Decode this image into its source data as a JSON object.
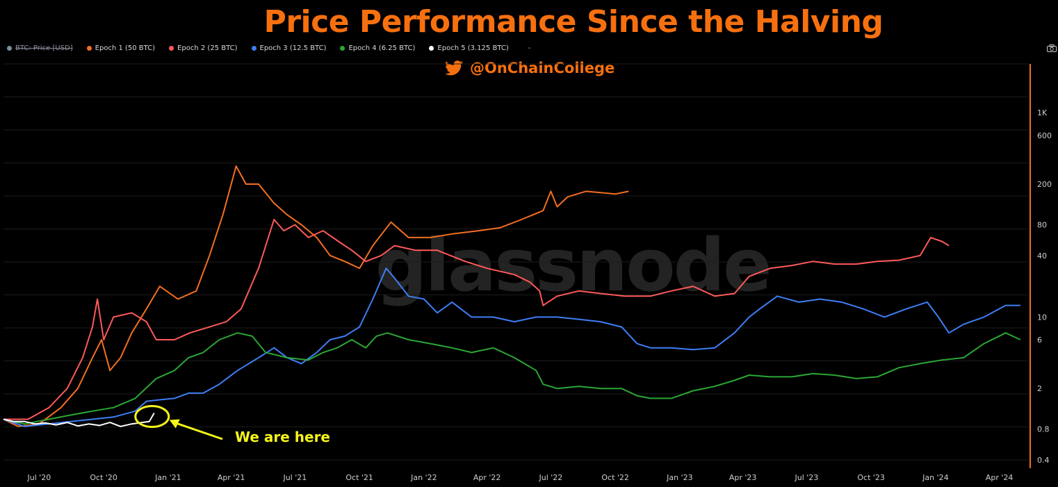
{
  "chart_data": {
    "type": "line",
    "title": "Price Performance Since the Halving",
    "credit": "@OnChainCollege",
    "watermark": "glassnode",
    "annotation": "We are here",
    "y_scale": "log",
    "ylim": [
      0.4,
      3000
    ],
    "y_ticks": [
      0.4,
      0.8,
      2,
      6,
      10,
      40,
      80,
      200,
      600,
      1000
    ],
    "y_tick_labels": [
      "0.4",
      "0.8",
      "2",
      "6",
      "10",
      "40",
      "80",
      "200",
      "600",
      "1K"
    ],
    "x_ticks": [
      "Jul '20",
      "Oct '20",
      "Jan '21",
      "Apr '21",
      "Jul '21",
      "Oct '21",
      "Jan '22",
      "Apr '22",
      "Jul '22",
      "Oct '22",
      "Jan '23",
      "Apr '23",
      "Jul '23",
      "Oct '23",
      "Jan '24",
      "Apr '24"
    ],
    "x_tick_dates": [
      "2020-07-01",
      "2020-10-01",
      "2021-01-01",
      "2021-04-01",
      "2021-07-01",
      "2021-10-01",
      "2022-01-01",
      "2022-04-01",
      "2022-07-01",
      "2022-10-01",
      "2023-01-01",
      "2023-04-01",
      "2023-07-01",
      "2023-10-01",
      "2024-01-01",
      "2024-04-01"
    ],
    "xlim": [
      "2020-05-11",
      "2024-05-13"
    ],
    "grid": true,
    "legend_position": "top-left",
    "legend_trailing": "-",
    "series": [
      {
        "name": "BTC: Price [USD]",
        "color": "#78909c",
        "visible": false,
        "points": []
      },
      {
        "name": "Epoch 1 (50 BTC)",
        "color": "#f36f21",
        "visible": true,
        "points": [
          [
            "2020-05-11",
            1.0
          ],
          [
            "2020-06-01",
            0.85
          ],
          [
            "2020-07-01",
            0.9
          ],
          [
            "2020-08-01",
            1.3
          ],
          [
            "2020-08-25",
            2.0
          ],
          [
            "2020-09-15",
            4.0
          ],
          [
            "2020-09-28",
            6.0
          ],
          [
            "2020-10-10",
            3.0
          ],
          [
            "2020-10-25",
            4.0
          ],
          [
            "2020-11-10",
            7.0
          ],
          [
            "2020-12-01",
            12.0
          ],
          [
            "2020-12-20",
            20.0
          ],
          [
            "2021-01-15",
            15.0
          ],
          [
            "2021-02-10",
            18.0
          ],
          [
            "2021-03-01",
            40.0
          ],
          [
            "2021-03-20",
            100.0
          ],
          [
            "2021-04-08",
            300.0
          ],
          [
            "2021-04-22",
            200.0
          ],
          [
            "2021-05-10",
            200.0
          ],
          [
            "2021-06-01",
            130.0
          ],
          [
            "2021-06-20",
            100.0
          ],
          [
            "2021-07-10",
            80.0
          ],
          [
            "2021-08-01",
            60.0
          ],
          [
            "2021-08-20",
            40.0
          ],
          [
            "2021-09-10",
            35.0
          ],
          [
            "2021-10-01",
            30.0
          ],
          [
            "2021-10-20",
            50.0
          ],
          [
            "2021-11-15",
            85.0
          ],
          [
            "2021-12-10",
            60.0
          ],
          [
            "2022-01-10",
            60.0
          ],
          [
            "2022-02-10",
            65.0
          ],
          [
            "2022-03-20",
            70.0
          ],
          [
            "2022-04-20",
            75.0
          ],
          [
            "2022-05-20",
            90.0
          ],
          [
            "2022-06-20",
            110.0
          ],
          [
            "2022-07-01",
            170.0
          ],
          [
            "2022-07-10",
            120.0
          ],
          [
            "2022-07-25",
            150.0
          ],
          [
            "2022-08-20",
            170.0
          ],
          [
            "2022-09-10",
            165.0
          ],
          [
            "2022-10-01",
            160.0
          ],
          [
            "2022-10-20",
            170.0
          ]
        ]
      },
      {
        "name": "Epoch 2 (25 BTC)",
        "color": "#ff5a5a",
        "visible": true,
        "points": [
          [
            "2020-05-11",
            1.0
          ],
          [
            "2020-06-15",
            1.0
          ],
          [
            "2020-07-15",
            1.3
          ],
          [
            "2020-08-10",
            2.0
          ],
          [
            "2020-09-01",
            4.0
          ],
          [
            "2020-09-15",
            8.0
          ],
          [
            "2020-09-22",
            15.0
          ],
          [
            "2020-10-01",
            6.0
          ],
          [
            "2020-10-15",
            10.0
          ],
          [
            "2020-11-10",
            11.0
          ],
          [
            "2020-12-01",
            9.0
          ],
          [
            "2020-12-15",
            6.0
          ],
          [
            "2021-01-10",
            6.0
          ],
          [
            "2021-02-01",
            7.0
          ],
          [
            "2021-03-01",
            8.0
          ],
          [
            "2021-03-25",
            9.0
          ],
          [
            "2021-04-15",
            12.0
          ],
          [
            "2021-05-10",
            30.0
          ],
          [
            "2021-06-01",
            90.0
          ],
          [
            "2021-06-15",
            70.0
          ],
          [
            "2021-07-01",
            80.0
          ],
          [
            "2021-07-20",
            60.0
          ],
          [
            "2021-08-10",
            70.0
          ],
          [
            "2021-09-01",
            55.0
          ],
          [
            "2021-09-20",
            45.0
          ],
          [
            "2021-10-10",
            35.0
          ],
          [
            "2021-11-01",
            40.0
          ],
          [
            "2021-11-20",
            50.0
          ],
          [
            "2021-12-20",
            45.0
          ],
          [
            "2022-01-20",
            45.0
          ],
          [
            "2022-03-01",
            35.0
          ],
          [
            "2022-04-01",
            30.0
          ],
          [
            "2022-05-10",
            26.0
          ],
          [
            "2022-06-01",
            22.0
          ],
          [
            "2022-06-15",
            18.0
          ],
          [
            "2022-06-20",
            13.0
          ],
          [
            "2022-07-10",
            16.0
          ],
          [
            "2022-08-10",
            18.0
          ],
          [
            "2022-09-10",
            17.0
          ],
          [
            "2022-10-15",
            16.0
          ],
          [
            "2022-11-20",
            16.0
          ],
          [
            "2022-12-20",
            18.0
          ],
          [
            "2023-01-20",
            20.0
          ],
          [
            "2023-02-20",
            16.0
          ],
          [
            "2023-03-20",
            17.0
          ],
          [
            "2023-04-10",
            25.0
          ],
          [
            "2023-05-10",
            30.0
          ],
          [
            "2023-06-10",
            32.0
          ],
          [
            "2023-07-10",
            35.0
          ],
          [
            "2023-08-10",
            33.0
          ],
          [
            "2023-09-10",
            33.0
          ],
          [
            "2023-10-10",
            35.0
          ],
          [
            "2023-11-10",
            36.0
          ],
          [
            "2023-12-10",
            40.0
          ],
          [
            "2023-12-25",
            60.0
          ],
          [
            "2024-01-10",
            55.0
          ],
          [
            "2024-01-20",
            50.0
          ]
        ]
      },
      {
        "name": "Epoch 3 (12.5 BTC)",
        "color": "#3e7ef5",
        "visible": true,
        "points": [
          [
            "2020-05-11",
            1.0
          ],
          [
            "2020-06-10",
            0.85
          ],
          [
            "2020-07-15",
            0.9
          ],
          [
            "2020-08-15",
            0.95
          ],
          [
            "2020-09-15",
            1.0
          ],
          [
            "2020-10-15",
            1.05
          ],
          [
            "2020-11-15",
            1.2
          ],
          [
            "2020-12-01",
            1.5
          ],
          [
            "2020-12-20",
            1.55
          ],
          [
            "2021-01-10",
            1.6
          ],
          [
            "2021-01-30",
            1.8
          ],
          [
            "2021-02-20",
            1.8
          ],
          [
            "2021-03-15",
            2.2
          ],
          [
            "2021-04-10",
            3.0
          ],
          [
            "2021-05-10",
            4.0
          ],
          [
            "2021-06-01",
            5.0
          ],
          [
            "2021-06-20",
            4.0
          ],
          [
            "2021-07-10",
            3.5
          ],
          [
            "2021-08-01",
            4.5
          ],
          [
            "2021-08-20",
            6.0
          ],
          [
            "2021-09-10",
            6.5
          ],
          [
            "2021-10-01",
            8.0
          ],
          [
            "2021-10-20",
            15.0
          ],
          [
            "2021-11-08",
            30.0
          ],
          [
            "2021-11-20",
            24.0
          ],
          [
            "2021-12-10",
            16.0
          ],
          [
            "2022-01-01",
            15.0
          ],
          [
            "2022-01-20",
            11.0
          ],
          [
            "2022-02-10",
            14.0
          ],
          [
            "2022-03-10",
            10.0
          ],
          [
            "2022-04-10",
            10.0
          ],
          [
            "2022-05-10",
            9.0
          ],
          [
            "2022-06-10",
            10.0
          ],
          [
            "2022-07-10",
            10.0
          ],
          [
            "2022-08-10",
            9.5
          ],
          [
            "2022-09-10",
            9.0
          ],
          [
            "2022-10-10",
            8.0
          ],
          [
            "2022-11-01",
            5.5
          ],
          [
            "2022-11-20",
            5.0
          ],
          [
            "2022-12-20",
            5.0
          ],
          [
            "2023-01-20",
            4.8
          ],
          [
            "2023-02-20",
            5.0
          ],
          [
            "2023-03-20",
            7.0
          ],
          [
            "2023-04-10",
            10.0
          ],
          [
            "2023-04-25",
            12.0
          ],
          [
            "2023-05-20",
            16.0
          ],
          [
            "2023-06-20",
            14.0
          ],
          [
            "2023-07-20",
            15.0
          ],
          [
            "2023-08-20",
            14.0
          ],
          [
            "2023-09-20",
            12.0
          ],
          [
            "2023-10-20",
            10.0
          ],
          [
            "2023-11-20",
            12.0
          ],
          [
            "2023-12-20",
            14.0
          ],
          [
            "2024-01-05",
            10.0
          ],
          [
            "2024-01-20",
            7.0
          ],
          [
            "2024-02-10",
            8.5
          ],
          [
            "2024-03-10",
            10.0
          ],
          [
            "2024-04-10",
            13.0
          ],
          [
            "2024-05-01",
            13.0
          ]
        ]
      },
      {
        "name": "Epoch 4 (6.25 BTC)",
        "color": "#2ba735",
        "visible": true,
        "points": [
          [
            "2020-05-11",
            1.0
          ],
          [
            "2020-06-10",
            0.9
          ],
          [
            "2020-07-15",
            1.0
          ],
          [
            "2020-08-15",
            1.1
          ],
          [
            "2020-09-15",
            1.2
          ],
          [
            "2020-10-15",
            1.3
          ],
          [
            "2020-11-15",
            1.6
          ],
          [
            "2020-12-15",
            2.5
          ],
          [
            "2021-01-10",
            3.0
          ],
          [
            "2021-01-30",
            4.0
          ],
          [
            "2021-02-20",
            4.5
          ],
          [
            "2021-03-15",
            6.0
          ],
          [
            "2021-04-10",
            7.0
          ],
          [
            "2021-05-01",
            6.5
          ],
          [
            "2021-05-20",
            4.5
          ],
          [
            "2021-06-20",
            4.0
          ],
          [
            "2021-07-20",
            3.8
          ],
          [
            "2021-08-10",
            4.5
          ],
          [
            "2021-08-30",
            5.0
          ],
          [
            "2021-09-20",
            6.0
          ],
          [
            "2021-10-10",
            5.0
          ],
          [
            "2021-10-25",
            6.5
          ],
          [
            "2021-11-10",
            7.0
          ],
          [
            "2021-12-10",
            6.0
          ],
          [
            "2022-01-10",
            5.5
          ],
          [
            "2022-02-10",
            5.0
          ],
          [
            "2022-03-10",
            4.5
          ],
          [
            "2022-04-10",
            5.0
          ],
          [
            "2022-05-10",
            4.0
          ],
          [
            "2022-06-10",
            3.0
          ],
          [
            "2022-06-20",
            2.2
          ],
          [
            "2022-07-10",
            2.0
          ],
          [
            "2022-08-10",
            2.1
          ],
          [
            "2022-09-10",
            2.0
          ],
          [
            "2022-10-10",
            2.0
          ],
          [
            "2022-11-01",
            1.7
          ],
          [
            "2022-11-20",
            1.6
          ],
          [
            "2022-12-20",
            1.6
          ],
          [
            "2023-01-20",
            1.9
          ],
          [
            "2023-02-20",
            2.1
          ],
          [
            "2023-03-20",
            2.4
          ],
          [
            "2023-04-10",
            2.7
          ],
          [
            "2023-05-10",
            2.6
          ],
          [
            "2023-06-10",
            2.6
          ],
          [
            "2023-07-10",
            2.8
          ],
          [
            "2023-08-10",
            2.7
          ],
          [
            "2023-09-10",
            2.5
          ],
          [
            "2023-10-10",
            2.6
          ],
          [
            "2023-11-10",
            3.2
          ],
          [
            "2023-12-10",
            3.5
          ],
          [
            "2024-01-10",
            3.8
          ],
          [
            "2024-02-10",
            4.0
          ],
          [
            "2024-03-10",
            5.5
          ],
          [
            "2024-04-10",
            7.0
          ],
          [
            "2024-05-01",
            6.0
          ]
        ]
      },
      {
        "name": "Epoch 5 (3.125 BTC)",
        "color": "#ffffff",
        "visible": true,
        "points": [
          [
            "2020-05-11",
            1.0
          ],
          [
            "2020-05-25",
            0.95
          ],
          [
            "2020-06-10",
            0.95
          ],
          [
            "2020-06-25",
            0.9
          ],
          [
            "2020-07-10",
            0.92
          ],
          [
            "2020-07-25",
            0.88
          ],
          [
            "2020-08-10",
            0.93
          ],
          [
            "2020-08-25",
            0.86
          ],
          [
            "2020-09-10",
            0.9
          ],
          [
            "2020-09-25",
            0.87
          ],
          [
            "2020-10-10",
            0.93
          ],
          [
            "2020-10-25",
            0.85
          ],
          [
            "2020-11-10",
            0.9
          ],
          [
            "2020-11-25",
            0.93
          ],
          [
            "2020-12-05",
            0.95
          ],
          [
            "2020-12-12",
            1.15
          ]
        ]
      }
    ]
  }
}
